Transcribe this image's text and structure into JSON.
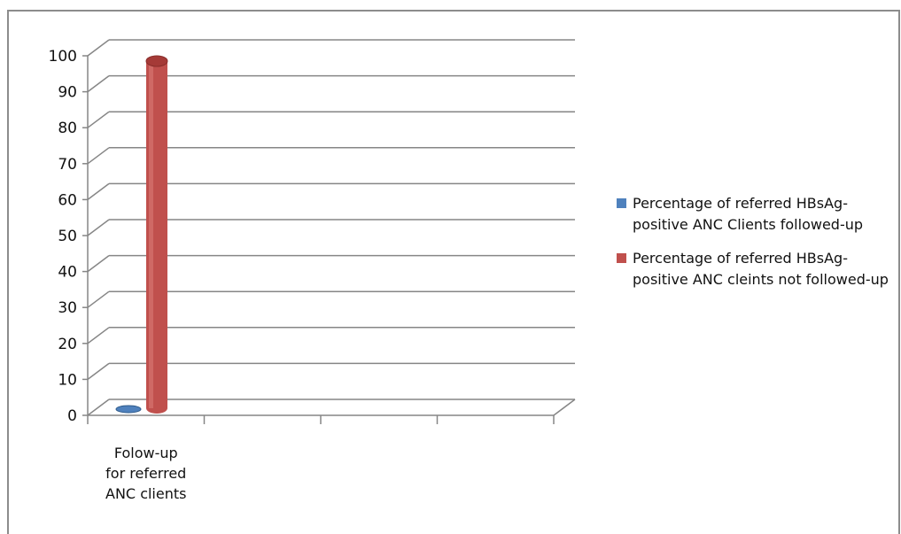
{
  "chart_data": {
    "type": "bar",
    "categories": [
      "Folow-up\nfor referred\nANC clients"
    ],
    "series": [
      {
        "name": "Percentage of referred HBsAg-positive ANC Clients followed-up",
        "values": [
          0
        ],
        "color": "#4f81bd"
      },
      {
        "name": "Percentage of referred HBsAg-positive ANC cleints not followed-up",
        "values": [
          100
        ],
        "color": "#c0504d"
      }
    ],
    "ylim": [
      0,
      100
    ],
    "yticks": [
      "0",
      "10",
      "20",
      "30",
      "40",
      "50",
      "60",
      "70",
      "80",
      "90",
      "100"
    ],
    "grid": true,
    "legend_position": "right",
    "style": "3d-cylinder"
  },
  "legend": {
    "items": [
      {
        "label": "Percentage of referred HBsAg-positive ANC Clients followed-up"
      },
      {
        "label": "Percentage of referred HBsAg-positive ANC cleints not followed-up"
      }
    ]
  }
}
